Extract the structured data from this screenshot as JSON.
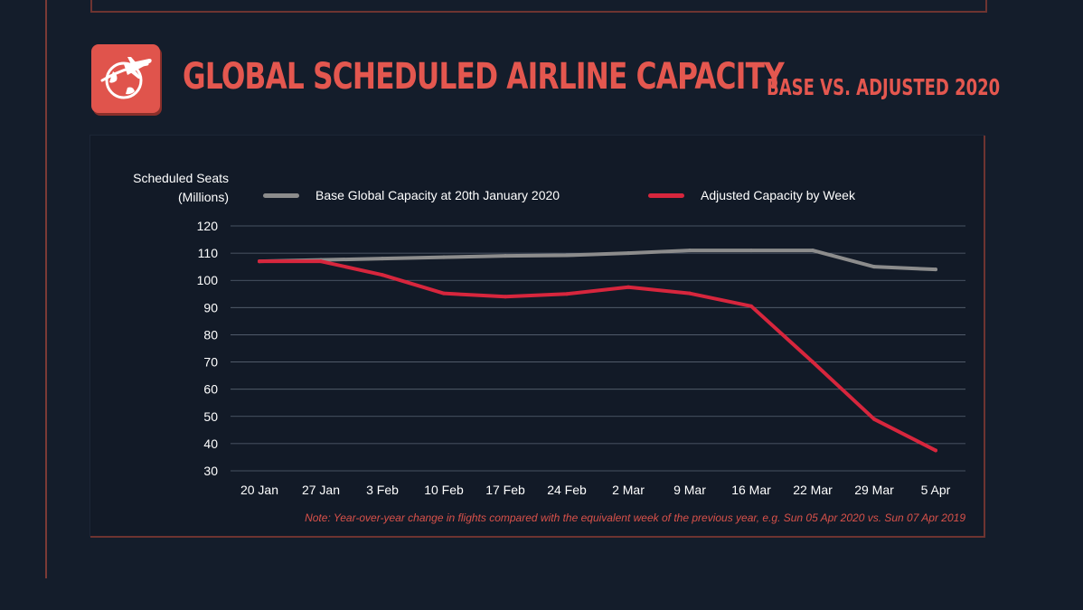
{
  "header": {
    "title": "Global Scheduled Airline Capacity",
    "subtitle": "Base vs. Adjusted 2020",
    "icon": "globe-airplane-icon",
    "accent_color": "#e0544c"
  },
  "chart_data": {
    "type": "line",
    "ylabel_line1": "Scheduled Seats",
    "ylabel_line2": "(Millions)",
    "categories": [
      "20 Jan",
      "27 Jan",
      "3 Feb",
      "10 Feb",
      "17 Feb",
      "24 Feb",
      "2 Mar",
      "9 Mar",
      "16 Mar",
      "22 Mar",
      "29 Mar",
      "5 Apr"
    ],
    "yticks": [
      120,
      110,
      100,
      90,
      80,
      70,
      60,
      50,
      40,
      30
    ],
    "ylim": [
      30,
      120
    ],
    "grid": true,
    "legend_position": "top",
    "series": [
      {
        "name": "Base Global Capacity at 20th January 2020",
        "color": "#8c8c8c",
        "values": [
          107,
          107.5,
          108,
          108.5,
          109,
          109.2,
          110,
          111,
          111,
          111,
          105,
          104
        ]
      },
      {
        "name": "Adjusted Capacity by Week",
        "color": "#d7263d",
        "values": [
          107,
          107,
          102,
          95.2,
          94,
          95,
          97.5,
          95.2,
          90.5,
          70,
          49,
          37.5
        ]
      }
    ],
    "note": "Note: Year-over-year change in flights compared with the equivalent week of the previous year, e.g. Sun 05 Apr 2020 vs. Sun 07 Apr 2019"
  }
}
